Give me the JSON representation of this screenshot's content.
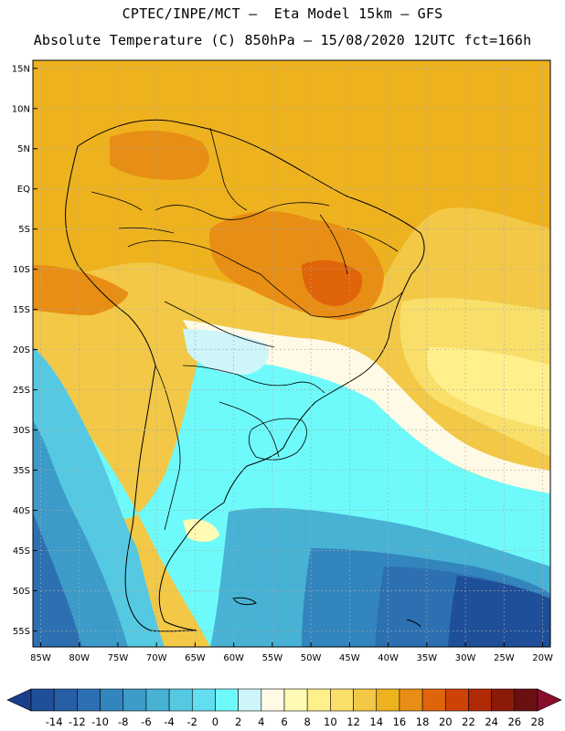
{
  "title": {
    "line1": "CPTEC/INPE/MCT –  Eta Model 15km – GFS",
    "line2": "Absolute Temperature (C) 850hPa – 15/08/2020 12UTC fct=166h"
  },
  "chart_data": {
    "type": "heatmap",
    "title": "Absolute Temperature (C) 850hPa",
    "y_tick_labels": [
      "15N",
      "10N",
      "5N",
      "EQ",
      "5S",
      "10S",
      "15S",
      "20S",
      "25S",
      "30S",
      "35S",
      "40S",
      "45S",
      "50S",
      "55S"
    ],
    "x_tick_labels": [
      "85W",
      "80W",
      "75W",
      "70W",
      "65W",
      "60W",
      "55W",
      "50W",
      "45W",
      "40W",
      "35W",
      "30W",
      "25W",
      "20W"
    ],
    "lon_range": [
      -86,
      -19
    ],
    "lat_range": [
      -57,
      16
    ],
    "grid": "dotted",
    "colorbar": {
      "labels": [
        "-14",
        "-12",
        "-10",
        "-8",
        "-6",
        "-4",
        "-2",
        "0",
        "2",
        "4",
        "6",
        "8",
        "10",
        "12",
        "14",
        "16",
        "18",
        "20",
        "22",
        "24",
        "26",
        "28"
      ],
      "colors": [
        "#1a3f8a",
        "#1f4f98",
        "#275ea6",
        "#2c70b2",
        "#3385bd",
        "#3c9bc8",
        "#47b2d4",
        "#55c9e2",
        "#62def0",
        "#6efafa",
        "#cdf5fa",
        "#fffae6",
        "#fffab4",
        "#fff08c",
        "#f9df6a",
        "#f2c846",
        "#eeb21e",
        "#e88e14",
        "#e0640a",
        "#cf4206",
        "#b02a06",
        "#8b1a0a",
        "#6a1010",
        "#8a0f2a"
      ]
    }
  }
}
